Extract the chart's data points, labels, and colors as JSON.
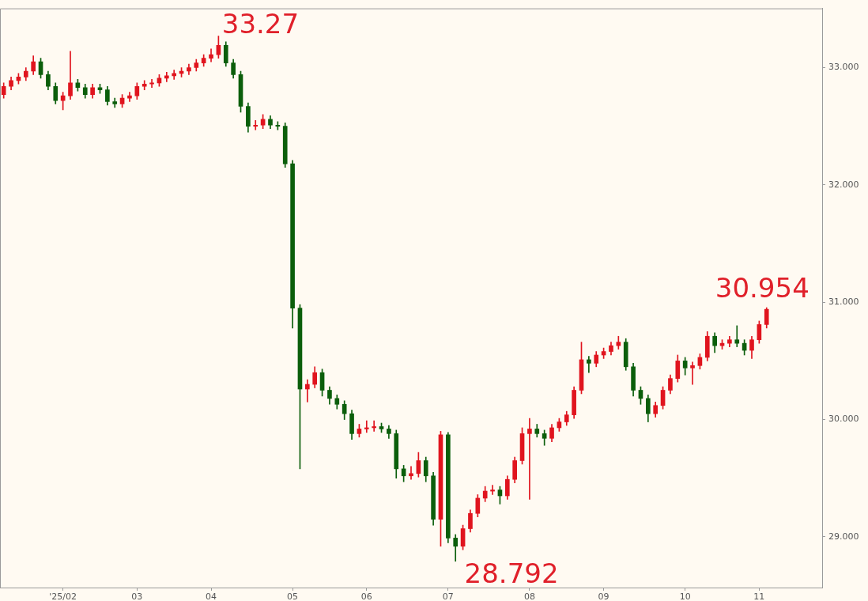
{
  "chart_data": {
    "type": "candlestick",
    "categories": [
      null,
      null,
      null,
      null,
      null,
      null,
      null,
      null,
      "'25/02",
      null,
      null,
      null,
      null,
      null,
      null,
      null,
      null,
      null,
      "03",
      null,
      null,
      null,
      null,
      null,
      null,
      null,
      null,
      null,
      "04",
      null,
      null,
      null,
      null,
      null,
      null,
      null,
      null,
      null,
      null,
      "05",
      null,
      null,
      null,
      null,
      null,
      null,
      null,
      null,
      null,
      "06",
      null,
      null,
      null,
      null,
      null,
      null,
      null,
      null,
      null,
      null,
      "07",
      null,
      null,
      null,
      null,
      null,
      null,
      null,
      null,
      null,
      null,
      "08",
      null,
      null,
      null,
      null,
      null,
      null,
      null,
      null,
      null,
      "09",
      null,
      null,
      null,
      null,
      null,
      null,
      null,
      null,
      null,
      null,
      "10",
      null,
      null,
      null,
      null,
      null,
      null,
      null,
      null,
      null,
      "11",
      null,
      null,
      null,
      null,
      null,
      null,
      null,
      null
    ],
    "ohlc": [
      [
        32.77,
        32.87,
        32.74,
        32.84
      ],
      [
        32.84,
        32.92,
        32.81,
        32.89
      ],
      [
        32.89,
        32.95,
        32.86,
        32.92
      ],
      [
        32.92,
        33.0,
        32.89,
        32.97
      ],
      [
        32.97,
        33.1,
        32.94,
        33.05
      ],
      [
        33.05,
        33.08,
        32.91,
        32.94
      ],
      [
        32.94,
        32.97,
        32.81,
        32.84
      ],
      [
        32.84,
        32.87,
        32.69,
        32.72
      ],
      [
        32.72,
        32.79,
        32.64,
        32.76
      ],
      [
        32.76,
        33.14,
        32.73,
        32.87
      ],
      [
        32.87,
        32.9,
        32.8,
        32.83
      ],
      [
        32.83,
        32.86,
        32.74,
        32.77
      ],
      [
        32.77,
        32.86,
        32.74,
        32.83
      ],
      [
        32.83,
        32.86,
        32.78,
        32.81
      ],
      [
        32.81,
        32.84,
        32.68,
        32.71
      ],
      [
        32.71,
        32.74,
        32.66,
        32.69
      ],
      [
        32.69,
        32.77,
        32.66,
        32.74
      ],
      [
        32.74,
        32.79,
        32.71,
        32.76
      ],
      [
        32.76,
        32.87,
        32.73,
        32.84
      ],
      [
        32.84,
        32.89,
        32.81,
        32.86
      ],
      [
        32.86,
        32.9,
        32.83,
        32.87
      ],
      [
        32.87,
        32.94,
        32.84,
        32.91
      ],
      [
        32.91,
        32.96,
        32.88,
        32.93
      ],
      [
        32.93,
        32.98,
        32.9,
        32.95
      ],
      [
        32.95,
        33.0,
        32.92,
        32.97
      ],
      [
        32.97,
        33.03,
        32.94,
        33.0
      ],
      [
        33.0,
        33.07,
        32.97,
        33.04
      ],
      [
        33.04,
        33.11,
        33.01,
        33.08
      ],
      [
        33.08,
        33.16,
        33.05,
        33.11
      ],
      [
        33.11,
        33.27,
        33.08,
        33.19
      ],
      [
        33.19,
        33.22,
        33.01,
        33.04
      ],
      [
        33.04,
        33.07,
        32.91,
        32.94
      ],
      [
        32.94,
        32.97,
        32.62,
        32.67
      ],
      [
        32.67,
        32.7,
        32.45,
        32.5
      ],
      [
        32.5,
        32.55,
        32.47,
        32.51
      ],
      [
        32.51,
        32.6,
        32.48,
        32.56
      ],
      [
        32.56,
        32.59,
        32.48,
        32.51
      ],
      [
        32.51,
        32.54,
        32.47,
        32.5
      ],
      [
        32.5,
        32.53,
        32.15,
        32.18
      ],
      [
        32.18,
        32.21,
        30.78,
        30.95
      ],
      [
        30.95,
        30.98,
        29.58,
        30.26
      ],
      [
        30.26,
        30.34,
        30.15,
        30.3
      ],
      [
        30.3,
        30.45,
        30.27,
        30.4
      ],
      [
        30.4,
        30.43,
        30.2,
        30.25
      ],
      [
        30.25,
        30.28,
        30.13,
        30.18
      ],
      [
        30.18,
        30.21,
        30.09,
        30.13
      ],
      [
        30.13,
        30.16,
        30.0,
        30.05
      ],
      [
        30.05,
        30.08,
        29.83,
        29.88
      ],
      [
        29.88,
        29.96,
        29.85,
        29.92
      ],
      [
        29.92,
        29.99,
        29.89,
        29.93
      ],
      [
        29.93,
        29.99,
        29.9,
        29.94
      ],
      [
        29.94,
        29.97,
        29.89,
        29.92
      ],
      [
        29.92,
        29.95,
        29.84,
        29.88
      ],
      [
        29.88,
        29.91,
        29.5,
        29.58
      ],
      [
        29.58,
        29.61,
        29.47,
        29.52
      ],
      [
        29.52,
        29.6,
        29.49,
        29.54
      ],
      [
        29.54,
        29.72,
        29.51,
        29.65
      ],
      [
        29.65,
        29.68,
        29.47,
        29.52
      ],
      [
        29.52,
        29.55,
        29.1,
        29.15
      ],
      [
        29.15,
        29.9,
        28.92,
        29.87
      ],
      [
        29.87,
        29.89,
        28.95,
        28.99
      ],
      [
        28.99,
        29.02,
        28.792,
        28.92
      ],
      [
        28.92,
        29.1,
        28.89,
        29.07
      ],
      [
        29.07,
        29.23,
        29.04,
        29.2
      ],
      [
        29.2,
        29.36,
        29.17,
        29.33
      ],
      [
        29.33,
        29.43,
        29.3,
        29.39
      ],
      [
        29.39,
        29.44,
        29.36,
        29.4
      ],
      [
        29.4,
        29.43,
        29.28,
        29.35
      ],
      [
        29.35,
        29.52,
        29.32,
        29.49
      ],
      [
        29.49,
        29.68,
        29.46,
        29.65
      ],
      [
        29.65,
        29.93,
        29.62,
        29.88
      ],
      [
        29.88,
        30.01,
        29.32,
        29.92
      ],
      [
        29.92,
        29.96,
        29.85,
        29.88
      ],
      [
        29.88,
        29.91,
        29.78,
        29.84
      ],
      [
        29.84,
        29.96,
        29.81,
        29.93
      ],
      [
        29.93,
        30.01,
        29.9,
        29.98
      ],
      [
        29.98,
        30.07,
        29.95,
        30.04
      ],
      [
        30.04,
        30.28,
        30.01,
        30.25
      ],
      [
        30.25,
        30.66,
        30.22,
        30.51
      ],
      [
        30.51,
        30.54,
        30.4,
        30.48
      ],
      [
        30.48,
        30.58,
        30.45,
        30.55
      ],
      [
        30.55,
        30.61,
        30.52,
        30.58
      ],
      [
        30.58,
        30.66,
        30.55,
        30.63
      ],
      [
        30.63,
        30.71,
        30.6,
        30.66
      ],
      [
        30.66,
        30.69,
        30.42,
        30.45
      ],
      [
        30.45,
        30.48,
        30.2,
        30.25
      ],
      [
        30.25,
        30.28,
        30.13,
        30.18
      ],
      [
        30.18,
        30.21,
        29.98,
        30.05
      ],
      [
        30.05,
        30.15,
        30.02,
        30.12
      ],
      [
        30.12,
        30.28,
        30.09,
        30.25
      ],
      [
        30.25,
        30.38,
        30.22,
        30.35
      ],
      [
        30.35,
        30.55,
        30.32,
        30.5
      ],
      [
        30.5,
        30.53,
        30.38,
        30.44
      ],
      [
        30.44,
        30.49,
        30.3,
        30.46
      ],
      [
        30.46,
        30.56,
        30.43,
        30.53
      ],
      [
        30.53,
        30.75,
        30.5,
        30.71
      ],
      [
        30.71,
        30.74,
        30.57,
        30.63
      ],
      [
        30.63,
        30.68,
        30.6,
        30.65
      ],
      [
        30.65,
        30.71,
        30.62,
        30.68
      ],
      [
        30.68,
        30.8,
        30.62,
        30.65
      ],
      [
        30.65,
        30.68,
        30.55,
        30.59
      ],
      [
        30.59,
        30.71,
        30.52,
        30.68
      ],
      [
        30.68,
        30.84,
        30.65,
        30.81
      ],
      [
        30.81,
        30.954,
        30.78,
        30.94
      ],
      null,
      null,
      null,
      null,
      null,
      null,
      null
    ],
    "colors": [
      "#e0141e",
      "#e0141e",
      "#e0141e",
      "#e0141e",
      "#e0141e",
      "#0b5e0b",
      "#0b5e0b",
      "#0b5e0b",
      "#e0141e",
      "#e0141e",
      "#0b5e0b",
      "#0b5e0b",
      "#e0141e",
      "#0b5e0b",
      "#0b5e0b",
      "#0b5e0b",
      "#e0141e",
      "#e0141e",
      "#e0141e",
      "#e0141e",
      "#e0141e",
      "#e0141e",
      "#e0141e",
      "#e0141e",
      "#e0141e",
      "#e0141e",
      "#e0141e",
      "#e0141e",
      "#e0141e",
      "#e0141e",
      "#0b5e0b",
      "#0b5e0b",
      "#0b5e0b",
      "#0b5e0b",
      "#e0141e",
      "#e0141e",
      "#0b5e0b",
      "#0b5e0b",
      "#0b5e0b",
      "#0b5e0b",
      "#0b5e0b",
      "#e0141e",
      "#e0141e",
      "#0b5e0b",
      "#0b5e0b",
      "#0b5e0b",
      "#0b5e0b",
      "#0b5e0b",
      "#e0141e",
      "#e0141e",
      "#e0141e",
      "#0b5e0b",
      "#0b5e0b",
      "#0b5e0b",
      "#0b5e0b",
      "#e0141e",
      "#e0141e",
      "#0b5e0b",
      "#0b5e0b",
      "#e0141e",
      "#0b5e0b",
      "#0b5e0b",
      "#e0141e",
      "#e0141e",
      "#e0141e",
      "#e0141e",
      "#e0141e",
      "#0b5e0b",
      "#e0141e",
      "#e0141e",
      "#e0141e",
      "#e0141e",
      "#0b5e0b",
      "#0b5e0b",
      "#e0141e",
      "#e0141e",
      "#e0141e",
      "#e0141e",
      "#e0141e",
      "#0b5e0b",
      "#e0141e",
      "#e0141e",
      "#e0141e",
      "#e0141e",
      "#0b5e0b",
      "#0b5e0b",
      "#0b5e0b",
      "#0b5e0b",
      "#e0141e",
      "#e0141e",
      "#e0141e",
      "#e0141e",
      "#0b5e0b",
      "#e0141e",
      "#e0141e",
      "#e0141e",
      "#0b5e0b",
      "#e0141e",
      "#e0141e",
      "#0b5e0b",
      "#0b5e0b",
      "#e0141e",
      "#e0141e",
      "#e0141e",
      null,
      null,
      null,
      null,
      null,
      null,
      null
    ],
    "ylim": [
      28.568,
      33.505
    ],
    "yticks": [
      {
        "value": 29,
        "label": "29.000"
      },
      {
        "value": 30,
        "label": "30.000"
      },
      {
        "value": 31,
        "label": "31.000"
      },
      {
        "value": 32,
        "label": "32.000"
      },
      {
        "value": 33,
        "label": "33.000"
      }
    ],
    "annotations": [
      "33.27",
      "28.792",
      "30.954"
    ],
    "grid": false,
    "legend": false
  }
}
